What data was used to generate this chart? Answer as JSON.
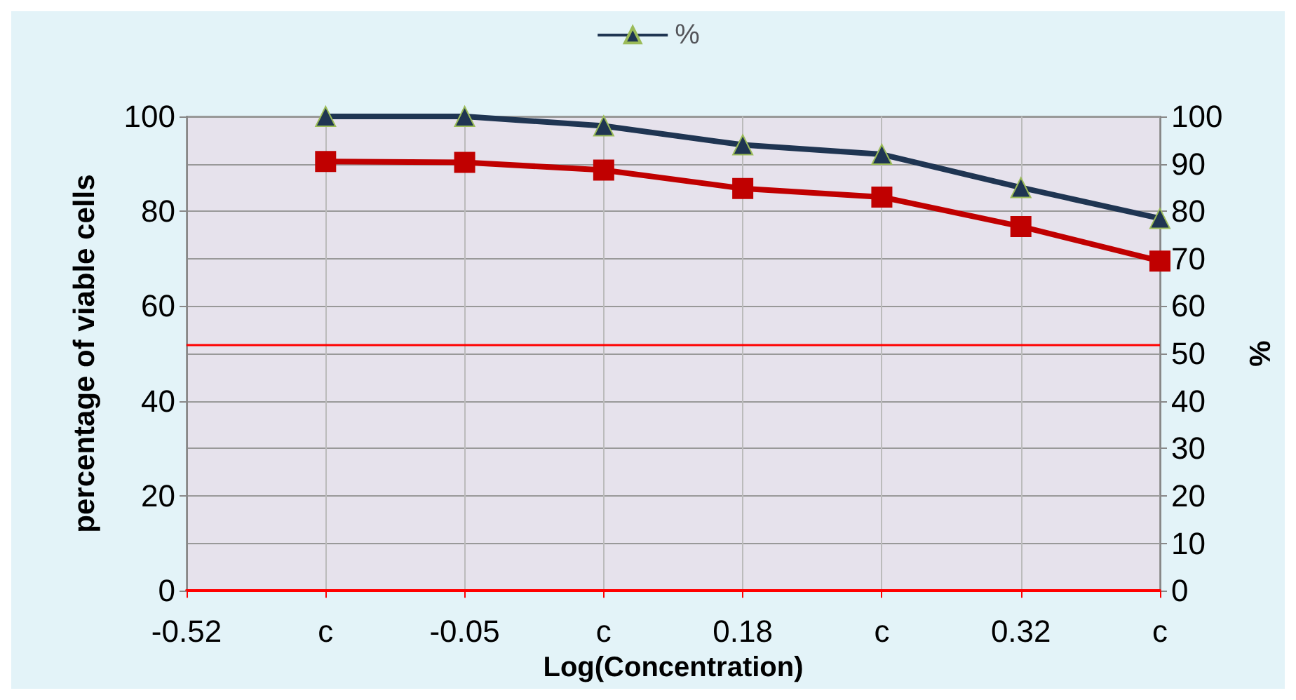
{
  "chart_data": {
    "type": "line",
    "xlabel": "Log(Concentration)",
    "ylabel": "percentage of viable cells",
    "y2label": "%",
    "categories": [
      "-0.52",
      "c",
      "-0.05",
      "c",
      "0.18",
      "c",
      "0.32",
      "c"
    ],
    "series": [
      {
        "name": "%",
        "color": "#1f3552",
        "marker": "triangle",
        "values": [
          null,
          100,
          100,
          98,
          94,
          92,
          85,
          78.5
        ]
      },
      {
        "color": "#c00000",
        "marker": "square",
        "values": [
          null,
          90.5,
          90.3,
          88.7,
          84.8,
          83,
          76.8,
          69.5
        ]
      }
    ],
    "ylim": [
      0,
      100
    ],
    "yticks": [
      0,
      20,
      40,
      60,
      80,
      100
    ],
    "y2lim": [
      0,
      100
    ],
    "y2ticks": [
      0,
      10,
      20,
      30,
      40,
      50,
      60,
      70,
      80,
      90,
      100
    ],
    "ref_lines": [
      {
        "axis": "y",
        "value": 52,
        "color": "#ff0000"
      }
    ],
    "grid": true,
    "legend": "top"
  }
}
